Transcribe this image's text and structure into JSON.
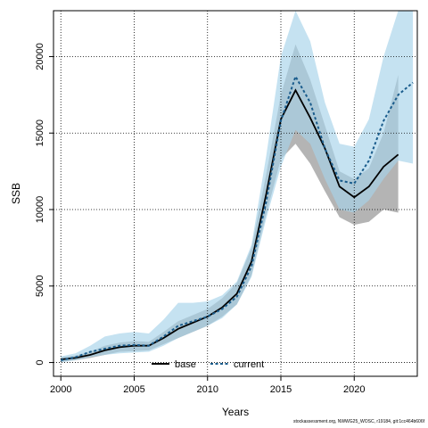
{
  "chart_data": {
    "type": "line",
    "xlabel": "Years",
    "ylabel": "SSB",
    "xlim": [
      1999.5,
      2024.3
    ],
    "ylim": [
      -900,
      23000
    ],
    "xticks": [
      2000,
      2005,
      2010,
      2015,
      2020
    ],
    "yticks": [
      0,
      5000,
      10000,
      15000,
      20000
    ],
    "grid": true,
    "legend_position": "bottom-center",
    "series": [
      {
        "name": "base",
        "color": "#000000",
        "line_style": "solid",
        "band_color": "#8c8c8c",
        "x": [
          2000,
          2001,
          2002,
          2003,
          2004,
          2005,
          2006,
          2007,
          2008,
          2009,
          2010,
          2011,
          2012,
          2013,
          2014,
          2015,
          2016,
          2017,
          2018,
          2019,
          2020,
          2021,
          2022,
          2023
        ],
        "y": [
          200,
          300,
          500,
          800,
          1000,
          1100,
          1100,
          1600,
          2200,
          2600,
          3000,
          3600,
          4500,
          6600,
          11000,
          15900,
          17800,
          16000,
          14000,
          11500,
          10800,
          11500,
          12800,
          13600
        ],
        "upper": [
          350,
          450,
          700,
          1100,
          1300,
          1400,
          1350,
          2000,
          2700,
          3100,
          3500,
          4200,
          5200,
          7500,
          12300,
          17500,
          20800,
          18500,
          15500,
          12500,
          12000,
          12700,
          15000,
          18800
        ],
        "lower": [
          50,
          150,
          300,
          500,
          700,
          750,
          800,
          1200,
          1600,
          2000,
          2400,
          3000,
          3800,
          5700,
          9700,
          13300,
          14300,
          13000,
          11200,
          9500,
          9000,
          9200,
          10000,
          9800
        ]
      },
      {
        "name": "current",
        "color": "#1a5c8c",
        "line_style": "dashed",
        "band_color": "#a6d2ea",
        "x": [
          2000,
          2001,
          2002,
          2003,
          2004,
          2005,
          2006,
          2007,
          2008,
          2009,
          2010,
          2011,
          2012,
          2013,
          2014,
          2015,
          2016,
          2017,
          2018,
          2019,
          2020,
          2021,
          2022,
          2023,
          2024
        ],
        "y": [
          150,
          350,
          700,
          900,
          1100,
          1150,
          1100,
          1700,
          2400,
          2700,
          3000,
          3500,
          4300,
          6300,
          10500,
          15800,
          18700,
          17000,
          14000,
          11900,
          11700,
          13200,
          15800,
          17500,
          18300
        ],
        "upper": [
          400,
          600,
          1100,
          1700,
          1900,
          2000,
          1900,
          2800,
          3900,
          3900,
          4000,
          4400,
          5300,
          7700,
          13500,
          20000,
          23000,
          21000,
          17000,
          14300,
          14100,
          15900,
          20000,
          23000,
          23000
        ],
        "lower": [
          0,
          150,
          350,
          500,
          600,
          650,
          700,
          1100,
          1600,
          2000,
          2400,
          2900,
          3800,
          5600,
          9400,
          12800,
          15200,
          14300,
          12000,
          10000,
          9800,
          10600,
          12000,
          13200,
          13000
        ]
      }
    ]
  },
  "footer_text": "stockassessment.org, NWWG25_WOSC, r19184, git:1cc464b606f"
}
